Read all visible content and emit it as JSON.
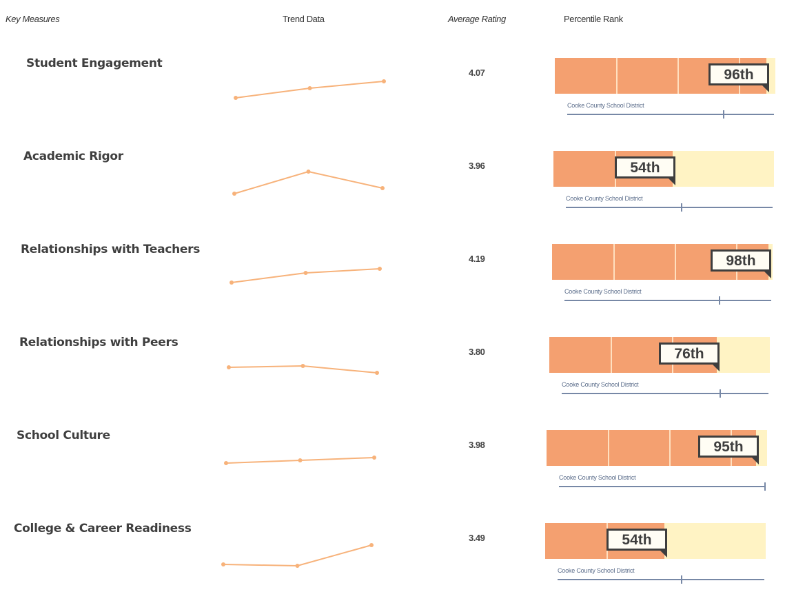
{
  "headers": {
    "key_measures": "Key Measures",
    "trend_data": "Trend Data",
    "average_rating": "Average Rating",
    "percentile_rank": "Percentile Rank"
  },
  "colors": {
    "bar_fill": "#f4a070",
    "bar_background": "#fff3c4",
    "trend_line": "#f7b27a",
    "district_line": "#7788a6",
    "badge_border": "#3e3e3e"
  },
  "chart_data": {
    "type": "table",
    "columns": [
      "Key Measures",
      "Trend Data",
      "Average Rating",
      "Percentile Rank"
    ],
    "rows": [
      {
        "measure": "Student Engagement",
        "rating": "4.07",
        "percentile": "96th",
        "percentile_value": 96,
        "trend": [
          0.2,
          0.55,
          0.8
        ],
        "district_label": "Cooke County School District",
        "district_marker": 0.76
      },
      {
        "measure": "Academic Rigor",
        "rating": "3.96",
        "percentile": "54th",
        "percentile_value": 54,
        "trend": [
          0.1,
          0.9,
          0.3
        ],
        "district_label": "Cooke County School District",
        "district_marker": 0.56
      },
      {
        "measure": "Relationships with Teachers",
        "rating": "4.19",
        "percentile": "98th",
        "percentile_value": 98,
        "trend": [
          0.25,
          0.6,
          0.75
        ],
        "district_label": "Cooke County School District",
        "district_marker": 0.75
      },
      {
        "measure": "Relationships with Peers",
        "rating": "3.80",
        "percentile": "76th",
        "percentile_value": 76,
        "trend": [
          0.55,
          0.6,
          0.35
        ],
        "district_label": "Cooke County School District",
        "district_marker": 0.77
      },
      {
        "measure": "School Culture",
        "rating": "3.98",
        "percentile": "95th",
        "percentile_value": 95,
        "trend": [
          0.45,
          0.55,
          0.65
        ],
        "district_label": "Cooke County School District",
        "district_marker": 1.0
      },
      {
        "measure": "College & Career Readiness",
        "rating": "3.49",
        "percentile": "54th",
        "percentile_value": 54,
        "trend": [
          0.15,
          0.1,
          0.85
        ],
        "district_label": "Cooke County School District",
        "district_marker": 0.6
      }
    ]
  }
}
